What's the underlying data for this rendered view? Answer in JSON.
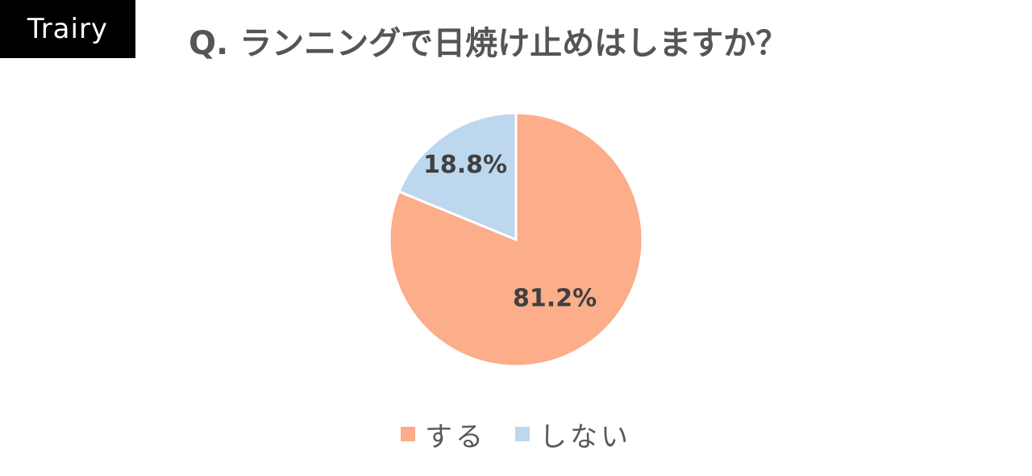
{
  "brand": {
    "logo_text": "Trairy"
  },
  "chart_data": {
    "type": "pie",
    "title": "Q. ランニングで日焼け止めはしますか？",
    "slices": [
      {
        "label": "する",
        "value": 81.2,
        "value_label": "81.2%",
        "color": "#FCAD8A"
      },
      {
        "label": "しない",
        "value": 18.8,
        "value_label": "18.8%",
        "color": "#BDD7EE"
      }
    ],
    "start_angle_deg": 0,
    "direction": "clockwise",
    "legend_position": "bottom"
  }
}
